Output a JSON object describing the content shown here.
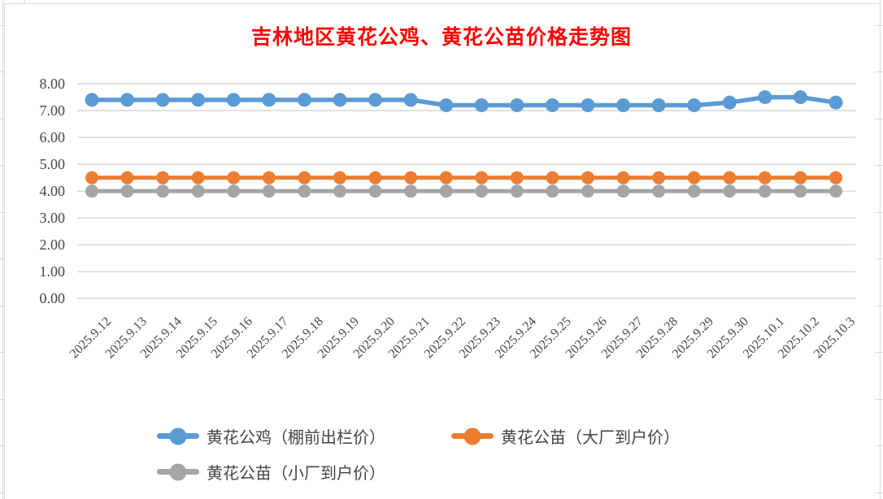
{
  "title": "吉林地区黄花公鸡、黄花公苗价格走势图",
  "colors": {
    "title": "#FF0000",
    "axis_text": "#454545",
    "gridline": "#D9D9D9",
    "sheet_line": "#D9D9D9",
    "series_blue": "#5B9BD5",
    "series_orange": "#ED7D31",
    "series_gray": "#A5A5A5"
  },
  "chart_data": {
    "type": "line",
    "title": "吉林地区黄花公鸡、黄花公苗价格走势图",
    "xlabel": "",
    "ylabel": "",
    "ylim": [
      0,
      8
    ],
    "ytick_step": 1,
    "yticks": [
      "8.00",
      "7.00",
      "6.00",
      "5.00",
      "4.00",
      "3.00",
      "2.00",
      "1.00",
      "0.00"
    ],
    "grid": "horizontal",
    "legend_position": "bottom",
    "categories": [
      "2025.9.12",
      "2025.9.13",
      "2025.9.14",
      "2025.9.15",
      "2025.9.16",
      "2025.9.17",
      "2025.9.18",
      "2025.9.19",
      "2025.9.20",
      "2025.9.21",
      "2025.9.22",
      "2025.9.23",
      "2025.9.24",
      "2025.9.25",
      "2025.9.26",
      "2025.9.27",
      "2025.9.28",
      "2025.9.29",
      "2025.9.30",
      "2025.10.1",
      "2025.10.2",
      "2025.10.3"
    ],
    "series": [
      {
        "name": "黄花公鸡（棚前出栏价）",
        "color": "#5B9BD5",
        "values": [
          7.4,
          7.4,
          7.4,
          7.4,
          7.4,
          7.4,
          7.4,
          7.4,
          7.4,
          7.4,
          7.2,
          7.2,
          7.2,
          7.2,
          7.2,
          7.2,
          7.2,
          7.2,
          7.3,
          7.5,
          7.5,
          7.3
        ]
      },
      {
        "name": "黄花公苗（大厂到户价）",
        "color": "#ED7D31",
        "values": [
          4.5,
          4.5,
          4.5,
          4.5,
          4.5,
          4.5,
          4.5,
          4.5,
          4.5,
          4.5,
          4.5,
          4.5,
          4.5,
          4.5,
          4.5,
          4.5,
          4.5,
          4.5,
          4.5,
          4.5,
          4.5,
          4.5
        ]
      },
      {
        "name": "黄花公苗（小厂到户价）",
        "color": "#A5A5A5",
        "values": [
          4.0,
          4.0,
          4.0,
          4.0,
          4.0,
          4.0,
          4.0,
          4.0,
          4.0,
          4.0,
          4.0,
          4.0,
          4.0,
          4.0,
          4.0,
          4.0,
          4.0,
          4.0,
          4.0,
          4.0,
          4.0,
          4.0
        ]
      }
    ]
  }
}
